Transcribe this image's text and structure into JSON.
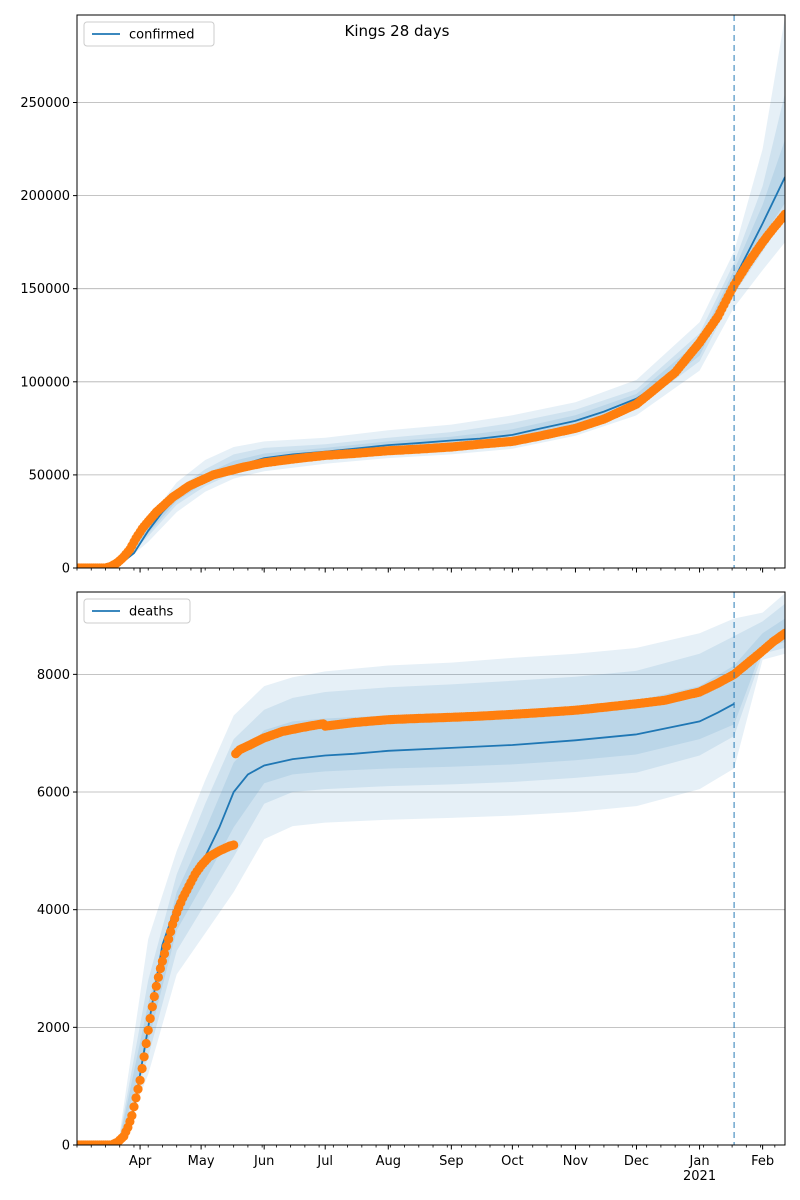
{
  "figure": {
    "title": "Kings 28 days"
  },
  "colors": {
    "model_line": "#1f77b4",
    "observed_points": "#ff7f0e",
    "band_fill": "#1f77b4",
    "grid": "#b0b0b0",
    "forecast_marker": "#1f77b4"
  },
  "chart_data": [
    {
      "type": "line",
      "name": "confirmed-panel",
      "legend_label": "confirmed",
      "legend_position": "upper-left",
      "grid": "horizontal",
      "x_range": [
        "2020-03-01",
        "2021-02-12"
      ],
      "ylim": [
        0,
        297000
      ],
      "y_ticks": [
        0,
        50000,
        100000,
        150000,
        200000,
        250000
      ],
      "y_tick_labels": [
        "0",
        "50000",
        "100000",
        "150000",
        "200000",
        "250000"
      ],
      "forecast_start": "2021-01-18",
      "model_line": {
        "x": [
          "2020-03-01",
          "2020-03-15",
          "2020-03-22",
          "2020-03-29",
          "2020-04-05",
          "2020-04-12",
          "2020-04-19",
          "2020-04-26",
          "2020-05-03",
          "2020-05-17",
          "2020-06-01",
          "2020-06-15",
          "2020-07-01",
          "2020-07-15",
          "2020-08-01",
          "2020-08-15",
          "2020-09-01",
          "2020-09-15",
          "2020-10-01",
          "2020-10-15",
          "2020-11-01",
          "2020-11-15",
          "2020-12-01",
          "2020-12-15",
          "2021-01-01",
          "2021-01-10",
          "2021-01-18",
          "2021-01-25",
          "2021-02-01",
          "2021-02-12"
        ],
        "y": [
          0,
          0,
          2000,
          8000,
          20000,
          30000,
          38000,
          44000,
          48000,
          54000,
          59000,
          61000,
          62500,
          64000,
          66000,
          67000,
          68500,
          69500,
          71500,
          75000,
          79000,
          84000,
          91000,
          101000,
          118000,
          135000,
          155000,
          170000,
          185000,
          210000
        ]
      },
      "bands": [
        {
          "x": [
            "2020-03-22",
            "2020-04-05",
            "2020-04-19",
            "2020-05-03",
            "2020-05-17",
            "2020-06-01",
            "2020-07-01",
            "2020-08-01",
            "2020-09-01",
            "2020-10-01",
            "2020-11-01",
            "2020-12-01",
            "2021-01-01",
            "2021-01-18",
            "2021-02-01",
            "2021-02-12"
          ],
          "lower": [
            1000,
            14000,
            30000,
            41000,
            48000,
            52000,
            56000,
            59000,
            61000,
            64000,
            71000,
            82000,
            106000,
            140000,
            160000,
            175000
          ],
          "upper": [
            3000,
            26000,
            46000,
            58000,
            65000,
            68000,
            70000,
            74000,
            77000,
            82000,
            89000,
            101000,
            132000,
            170000,
            225000,
            296000
          ]
        },
        {
          "x": [
            "2020-03-22",
            "2020-04-05",
            "2020-04-19",
            "2020-05-03",
            "2020-05-17",
            "2020-06-01",
            "2020-07-01",
            "2020-08-01",
            "2020-09-01",
            "2020-10-01",
            "2020-11-01",
            "2020-12-01",
            "2021-01-01",
            "2021-01-18",
            "2021-02-01",
            "2021-02-12"
          ],
          "lower": [
            1500,
            17000,
            34000,
            44000,
            51000,
            55000,
            59000,
            62000,
            64000,
            67000,
            74000,
            86000,
            111000,
            147000,
            170000,
            188000
          ],
          "upper": [
            2600,
            23000,
            42000,
            53000,
            61000,
            64500,
            66500,
            70000,
            73000,
            78000,
            85000,
            96000,
            126000,
            164000,
            205000,
            255000
          ]
        },
        {
          "x": [
            "2020-03-22",
            "2020-04-05",
            "2020-04-19",
            "2020-05-03",
            "2020-05-17",
            "2020-06-01",
            "2020-07-01",
            "2020-08-01",
            "2020-09-01",
            "2020-10-01",
            "2020-11-01",
            "2020-12-01",
            "2021-01-01",
            "2021-01-18",
            "2021-02-01",
            "2021-02-12"
          ],
          "lower": [
            1800,
            18500,
            36000,
            46000,
            53000,
            57000,
            61000,
            64000,
            66500,
            69000,
            76000,
            88000,
            114000,
            151000,
            178000,
            196000
          ],
          "upper": [
            2300,
            21500,
            40000,
            50500,
            57500,
            61500,
            64500,
            68000,
            70500,
            74500,
            82000,
            93500,
            122000,
            160000,
            195000,
            230000
          ]
        }
      ],
      "observed": {
        "x": [
          "2020-03-01",
          "2020-03-08",
          "2020-03-15",
          "2020-03-18",
          "2020-03-21",
          "2020-03-24",
          "2020-03-27",
          "2020-03-30",
          "2020-04-02",
          "2020-04-05",
          "2020-04-09",
          "2020-04-13",
          "2020-04-17",
          "2020-04-21",
          "2020-04-25",
          "2020-05-01",
          "2020-05-07",
          "2020-05-14",
          "2020-05-21",
          "2020-06-01",
          "2020-06-15",
          "2020-07-01",
          "2020-07-15",
          "2020-08-01",
          "2020-08-15",
          "2020-09-01",
          "2020-09-15",
          "2020-10-01",
          "2020-10-15",
          "2020-11-01",
          "2020-11-15",
          "2020-12-01",
          "2020-12-10",
          "2020-12-20",
          "2021-01-01",
          "2021-01-10",
          "2021-01-18",
          "2021-01-25",
          "2021-02-01",
          "2021-02-06",
          "2021-02-12"
        ],
        "y": [
          0,
          0,
          0,
          1000,
          3000,
          6000,
          10000,
          16000,
          21000,
          25000,
          30000,
          34000,
          38000,
          41000,
          44000,
          47000,
          50000,
          52000,
          54000,
          56500,
          58500,
          60500,
          61500,
          63000,
          63800,
          65000,
          66500,
          68000,
          71000,
          75000,
          80000,
          88000,
          96000,
          105000,
          121000,
          135000,
          152000,
          164000,
          175000,
          182000,
          190000
        ]
      }
    },
    {
      "type": "line",
      "name": "deaths-panel",
      "legend_label": "deaths",
      "legend_position": "upper-left",
      "grid": "horizontal",
      "x_range": [
        "2020-03-01",
        "2021-02-12"
      ],
      "ylim": [
        0,
        9400
      ],
      "y_ticks": [
        0,
        2000,
        4000,
        6000,
        8000
      ],
      "y_tick_labels": [
        "0",
        "2000",
        "4000",
        "6000",
        "8000"
      ],
      "forecast_start": "2021-01-18",
      "x_tick_labels": [
        "Apr",
        "May",
        "Jun",
        "Jul",
        "Aug",
        "Sep",
        "Oct",
        "Nov",
        "Dec",
        "Jan\n2021",
        "Feb"
      ],
      "x_tick_dates": [
        "2020-04-01",
        "2020-05-01",
        "2020-06-01",
        "2020-07-01",
        "2020-08-01",
        "2020-09-01",
        "2020-10-01",
        "2020-11-01",
        "2020-12-01",
        "2021-01-01",
        "2021-02-01"
      ],
      "model_line": {
        "x": [
          "2020-03-01",
          "2020-03-15",
          "2020-03-22",
          "2020-03-29",
          "2020-04-05",
          "2020-04-12",
          "2020-04-19",
          "2020-04-26",
          "2020-05-03",
          "2020-05-10",
          "2020-05-17",
          "2020-05-24",
          "2020-06-01",
          "2020-06-15",
          "2020-07-01",
          "2020-07-15",
          "2020-08-01",
          "2020-09-01",
          "2020-10-01",
          "2020-11-01",
          "2020-12-01",
          "2021-01-01",
          "2021-01-10",
          "2021-01-18"
        ],
        "y": [
          0,
          0,
          50,
          600,
          2000,
          3400,
          4100,
          4500,
          4900,
          5400,
          6000,
          6300,
          6450,
          6560,
          6620,
          6650,
          6700,
          6750,
          6800,
          6880,
          6980,
          7200,
          7350,
          7500
        ]
      },
      "bands": [
        {
          "x": [
            "2020-03-22",
            "2020-04-05",
            "2020-04-19",
            "2020-05-03",
            "2020-05-17",
            "2020-06-01",
            "2020-06-15",
            "2020-07-01",
            "2020-08-01",
            "2020-09-01",
            "2020-10-01",
            "2020-11-01",
            "2020-12-01",
            "2021-01-01",
            "2021-01-18",
            "2021-02-01",
            "2021-02-12"
          ],
          "lower": [
            0,
            1200,
            2900,
            3600,
            4300,
            5200,
            5420,
            5480,
            5530,
            5560,
            5600,
            5660,
            5760,
            6050,
            6400,
            8250,
            8350
          ],
          "upper": [
            200,
            3500,
            5000,
            6200,
            7300,
            7800,
            7950,
            8050,
            8150,
            8200,
            8280,
            8350,
            8450,
            8700,
            8950,
            9050,
            9380
          ]
        },
        {
          "x": [
            "2020-03-22",
            "2020-04-05",
            "2020-04-19",
            "2020-05-03",
            "2020-05-17",
            "2020-06-01",
            "2020-06-15",
            "2020-07-01",
            "2020-08-01",
            "2020-09-01",
            "2020-10-01",
            "2020-11-01",
            "2020-12-01",
            "2021-01-01",
            "2021-01-18",
            "2021-02-01",
            "2021-02-12"
          ],
          "lower": [
            20,
            1500,
            3300,
            4100,
            4900,
            5800,
            6000,
            6050,
            6100,
            6130,
            6170,
            6240,
            6330,
            6620,
            6950,
            8350,
            8450
          ],
          "upper": [
            150,
            2800,
            4600,
            5800,
            6900,
            7400,
            7600,
            7700,
            7780,
            7830,
            7890,
            7960,
            8060,
            8350,
            8650,
            8900,
            9200
          ]
        },
        {
          "x": [
            "2020-03-22",
            "2020-04-05",
            "2020-04-19",
            "2020-05-03",
            "2020-05-17",
            "2020-06-01",
            "2020-06-15",
            "2020-07-01",
            "2020-08-01",
            "2020-09-01",
            "2020-10-01",
            "2020-11-01",
            "2020-12-01",
            "2021-01-01",
            "2021-01-18",
            "2021-02-01",
            "2021-02-12"
          ],
          "lower": [
            30,
            1750,
            3650,
            4500,
            5400,
            6150,
            6300,
            6350,
            6400,
            6430,
            6470,
            6540,
            6640,
            6900,
            7150,
            8450,
            8550
          ],
          "upper": [
            100,
            2400,
            4300,
            5350,
            6500,
            7050,
            7200,
            7250,
            7300,
            7340,
            7380,
            7450,
            7550,
            7800,
            8150,
            8700,
            8950
          ]
        }
      ],
      "observed": {
        "x": [
          "2020-03-01",
          "2020-03-10",
          "2020-03-18",
          "2020-03-21",
          "2020-03-24",
          "2020-03-26",
          "2020-03-28",
          "2020-03-30",
          "2020-04-01",
          "2020-04-03",
          "2020-04-05",
          "2020-04-07",
          "2020-04-09",
          "2020-04-11",
          "2020-04-13",
          "2020-04-15",
          "2020-04-17",
          "2020-04-19",
          "2020-04-22",
          "2020-04-25",
          "2020-04-28",
          "2020-05-01",
          "2020-05-05",
          "2020-05-10",
          "2020-05-15",
          "2020-05-17",
          "2020-05-18",
          "2020-05-20",
          "2020-05-25",
          "2020-06-01",
          "2020-06-10",
          "2020-06-20",
          "2020-06-30",
          "2020-07-01",
          "2020-07-15",
          "2020-08-01",
          "2020-08-15",
          "2020-09-01",
          "2020-09-15",
          "2020-10-01",
          "2020-10-15",
          "2020-11-01",
          "2020-11-15",
          "2020-12-01",
          "2020-12-15",
          "2021-01-01",
          "2021-01-10",
          "2021-01-18",
          "2021-01-25",
          "2021-02-01",
          "2021-02-06",
          "2021-02-12"
        ],
        "y": [
          0,
          0,
          0,
          50,
          150,
          300,
          500,
          800,
          1100,
          1500,
          1950,
          2350,
          2700,
          3000,
          3250,
          3500,
          3750,
          3950,
          4200,
          4400,
          4600,
          4750,
          4900,
          5000,
          5080,
          5100,
          6650,
          6720,
          6800,
          6920,
          7030,
          7100,
          7160,
          7120,
          7180,
          7230,
          7250,
          7270,
          7290,
          7320,
          7350,
          7390,
          7440,
          7500,
          7560,
          7700,
          7850,
          8000,
          8200,
          8400,
          8550,
          8700
        ]
      }
    }
  ]
}
